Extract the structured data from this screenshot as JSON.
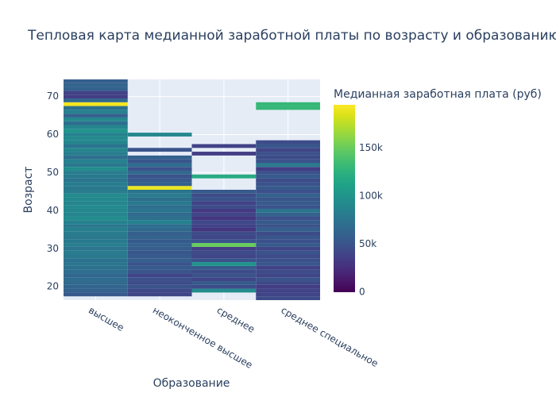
{
  "chart_data": {
    "type": "heatmap",
    "title": "Тепловая карта медианной заработной платы по возрасту и образованию",
    "x_label": "Образование",
    "y_label": "Возраст",
    "colorbar_title": "Медианная заработная плата (руб)",
    "categories": [
      "высшее",
      "неоконченное высшее",
      "среднее",
      "среднее специальное"
    ],
    "y": [
      17,
      18,
      19,
      20,
      21,
      22,
      23,
      24,
      25,
      26,
      27,
      28,
      29,
      30,
      31,
      32,
      33,
      34,
      35,
      36,
      37,
      38,
      39,
      40,
      41,
      42,
      43,
      44,
      45,
      46,
      47,
      48,
      49,
      50,
      51,
      52,
      53,
      54,
      55,
      56,
      57,
      58,
      59,
      60,
      61,
      62,
      63,
      64,
      65,
      66,
      67,
      68,
      69,
      70,
      71,
      72,
      73,
      74
    ],
    "values": [
      [
        null,
        55000,
        60000,
        62000,
        65000,
        68000,
        64000,
        70000,
        72000,
        75000,
        73000,
        78000,
        80000,
        76000,
        82000,
        79000,
        77000,
        80000,
        83000,
        78000,
        85000,
        95000,
        88000,
        90000,
        92000,
        89000,
        91000,
        93000,
        80000,
        78000,
        82000,
        76000,
        79000,
        81000,
        95000,
        78000,
        85000,
        70000,
        82000,
        88000,
        75000,
        90000,
        92000,
        85000,
        100000,
        88000,
        70000,
        90000,
        60000,
        85000,
        72000,
        192000,
        65000,
        35000,
        38000,
        60000,
        62000,
        58000
      ],
      [
        null,
        40000,
        42000,
        50000,
        45000,
        48000,
        40000,
        52000,
        55000,
        50000,
        58000,
        55000,
        52000,
        57000,
        60000,
        55000,
        62000,
        58000,
        65000,
        70000,
        85000,
        72000,
        68000,
        75000,
        70000,
        78000,
        72000,
        80000,
        75000,
        190000,
        60000,
        55000,
        50000,
        65000,
        48000,
        70000,
        52000,
        60000,
        null,
        50000,
        null,
        null,
        null,
        90000,
        null,
        null,
        null,
        null,
        null,
        null,
        null,
        null,
        null,
        null,
        null,
        null,
        null,
        null
      ],
      [
        null,
        null,
        95000,
        45000,
        55000,
        40000,
        50000,
        45000,
        55000,
        100000,
        50000,
        40000,
        45000,
        35000,
        150000,
        50000,
        40000,
        45000,
        30000,
        38000,
        42000,
        30000,
        40000,
        32000,
        45000,
        38000,
        50000,
        45000,
        55000,
        null,
        null,
        null,
        120000,
        null,
        null,
        null,
        null,
        null,
        35000,
        null,
        38000,
        null,
        null,
        null,
        null,
        null,
        null,
        null,
        null,
        null,
        null,
        null,
        null,
        null,
        null,
        null,
        null,
        null
      ],
      [
        45000,
        40000,
        38000,
        35000,
        42000,
        50000,
        40000,
        45000,
        38000,
        52000,
        48000,
        45000,
        50000,
        40000,
        55000,
        48000,
        52000,
        45000,
        58000,
        50000,
        55000,
        48000,
        60000,
        75000,
        50000,
        55000,
        52000,
        60000,
        48000,
        55000,
        50000,
        45000,
        55000,
        48000,
        35000,
        80000,
        50000,
        45000,
        48000,
        40000,
        52000,
        45000,
        null,
        null,
        null,
        null,
        null,
        null,
        null,
        null,
        130000,
        130000,
        null,
        null,
        null,
        null,
        null,
        null
      ]
    ],
    "ylim": [
      16.5,
      74.5
    ],
    "yticks": [
      20,
      30,
      40,
      50,
      60,
      70
    ],
    "zlim": [
      0,
      195000
    ],
    "zticks": [
      0,
      {
        "value": 50000,
        "label": "50k"
      },
      {
        "value": 100000,
        "label": "100k"
      },
      {
        "value": 150000,
        "label": "150k"
      }
    ],
    "grid": true,
    "colorscale": [
      [
        0,
        "#440154"
      ],
      [
        0.0627,
        "#48186a"
      ],
      [
        0.1255,
        "#472d7b"
      ],
      [
        0.1882,
        "#424086"
      ],
      [
        0.251,
        "#3b528b"
      ],
      [
        0.3137,
        "#33638d"
      ],
      [
        0.3765,
        "#2c728e"
      ],
      [
        0.4392,
        "#26828e"
      ],
      [
        0.502,
        "#21918c"
      ],
      [
        0.5647,
        "#1fa088"
      ],
      [
        0.6275,
        "#28ae80"
      ],
      [
        0.6902,
        "#3fbc73"
      ],
      [
        0.7529,
        "#5ec962"
      ],
      [
        0.8157,
        "#84d44b"
      ],
      [
        0.8784,
        "#addc30"
      ],
      [
        0.9412,
        "#d8e219"
      ],
      [
        1,
        "#fde725"
      ]
    ]
  }
}
